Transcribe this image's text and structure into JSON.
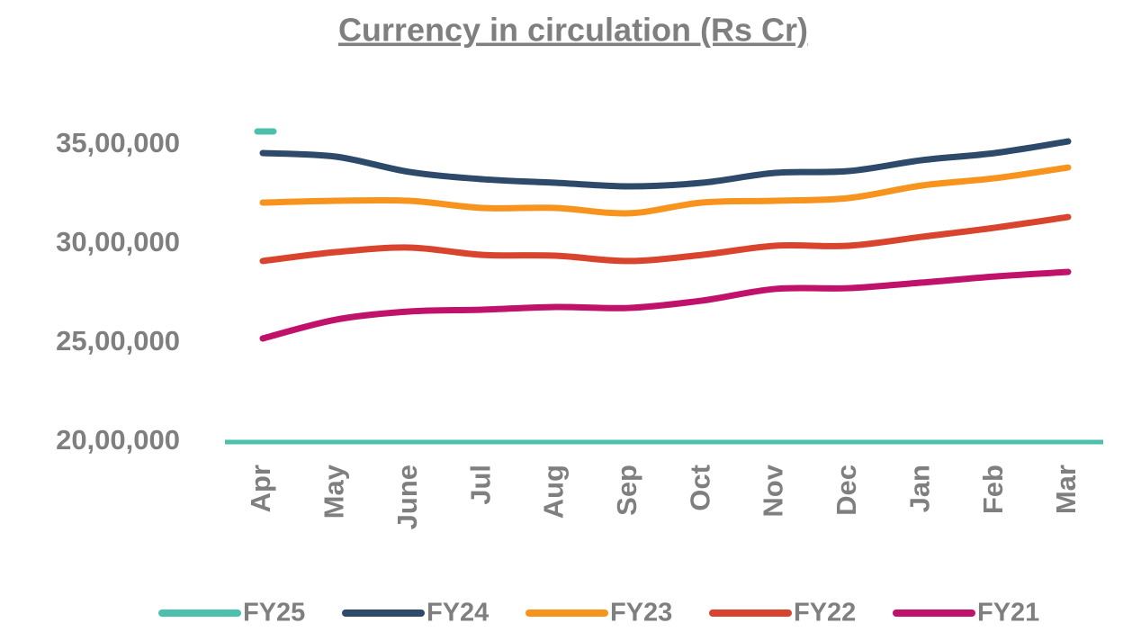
{
  "chart_data": {
    "type": "line",
    "title": "Currency in circulation (Rs Cr)",
    "categories": [
      "Apr",
      "May",
      "June",
      "Jul",
      "Aug",
      "Sep",
      "Oct",
      "Nov",
      "Dec",
      "Jan",
      "Feb",
      "Mar"
    ],
    "ylim": [
      2000000,
      3800000
    ],
    "yticks": [
      {
        "value": 2000000,
        "label": "20,00,000"
      },
      {
        "value": 2500000,
        "label": "25,00,000"
      },
      {
        "value": 3000000,
        "label": "30,00,000"
      },
      {
        "value": 3500000,
        "label": "35,00,000"
      }
    ],
    "grid": false,
    "legend": "bottom",
    "series": [
      {
        "name": "FY25",
        "color": "#4dbfad",
        "values": [
          3568000,
          null,
          null,
          null,
          null,
          null,
          null,
          null,
          null,
          null,
          null,
          null
        ]
      },
      {
        "name": "FY24",
        "color": "#2e4a6b",
        "values": [
          3459000,
          3441000,
          3364000,
          3327000,
          3309000,
          3291000,
          3309000,
          3359000,
          3368000,
          3423000,
          3459000,
          3518000
        ]
      },
      {
        "name": "FY23",
        "color": "#f7941d",
        "values": [
          3209000,
          3218000,
          3218000,
          3182000,
          3182000,
          3155000,
          3209000,
          3218000,
          3232000,
          3295000,
          3332000,
          3386000
        ]
      },
      {
        "name": "FY22",
        "color": "#d9442f",
        "values": [
          2914000,
          2959000,
          2982000,
          2945000,
          2941000,
          2914000,
          2945000,
          2991000,
          2991000,
          3036000,
          3082000,
          3136000
        ]
      },
      {
        "name": "FY21",
        "color": "#c0116b",
        "values": [
          2523000,
          2618000,
          2659000,
          2668000,
          2682000,
          2677000,
          2714000,
          2773000,
          2777000,
          2805000,
          2836000,
          2859000
        ]
      }
    ]
  }
}
